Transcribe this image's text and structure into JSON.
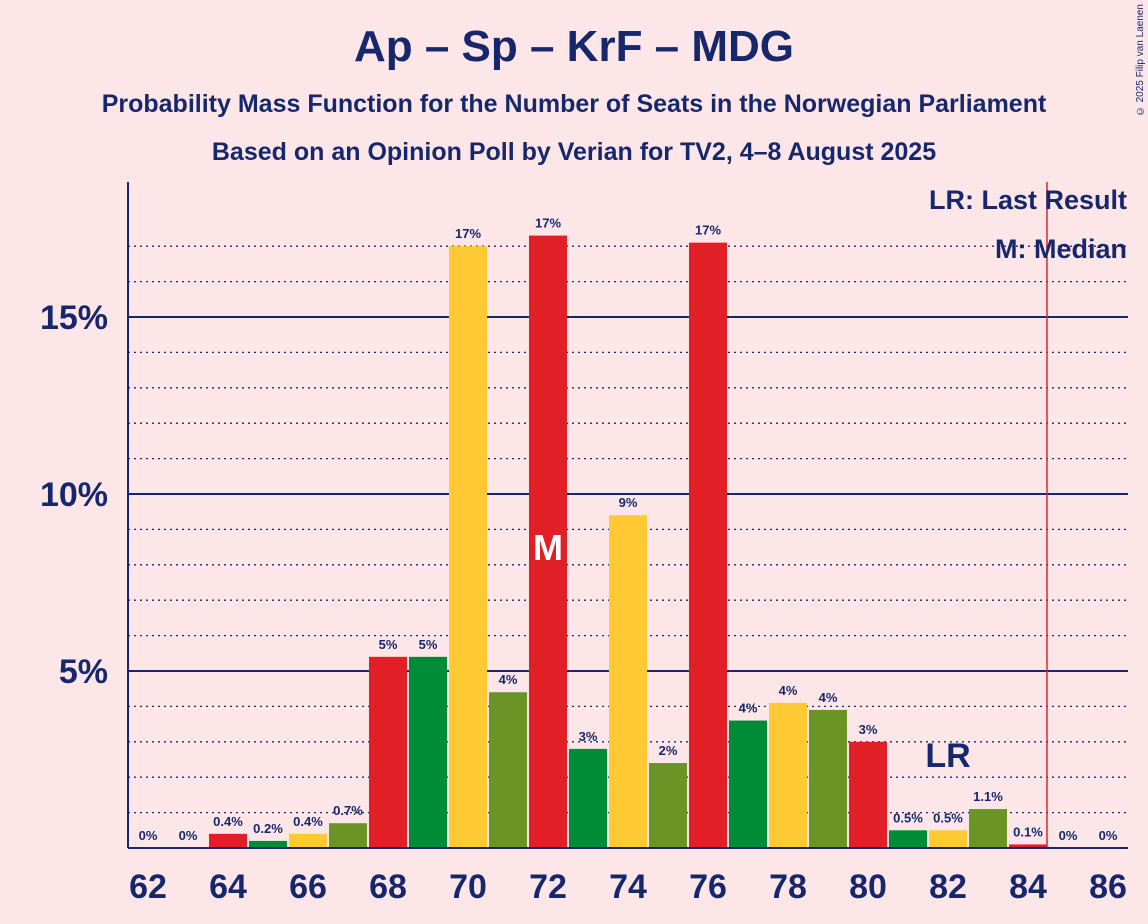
{
  "title": "Ap – Sp – KrF – MDG",
  "subtitle": "Probability Mass Function for the Number of Seats in the Norwegian Parliament",
  "subtitle2": "Based on an Opinion Poll by Verian for TV2, 4–8 August 2025",
  "copyright": "© 2025 Filip van Laenen",
  "legend": {
    "lr": "LR: Last Result",
    "m": "M: Median"
  },
  "colors": {
    "background": "#FDE6E8",
    "axis": "#16286B",
    "last_result_line": "#E0262B",
    "palette": [
      "#E01F26",
      "#008C36",
      "#FFC933",
      "#6B9427"
    ]
  },
  "chart_data": {
    "type": "bar",
    "x": [
      62,
      63,
      64,
      65,
      66,
      67,
      68,
      69,
      70,
      71,
      72,
      73,
      74,
      75,
      76,
      77,
      78,
      79,
      80,
      81,
      82,
      83,
      84,
      85,
      86
    ],
    "values": [
      0,
      0,
      0.4,
      0.2,
      0.4,
      0.7,
      5.4,
      5.4,
      17,
      4.4,
      17.3,
      2.8,
      9.4,
      2.4,
      17.1,
      3.6,
      4.1,
      3.9,
      3.0,
      0.5,
      0.5,
      1.1,
      0.1,
      0,
      0
    ],
    "data_labels": [
      "0%",
      "0%",
      "0.4%",
      "0.2%",
      "0.4%",
      "0.7%",
      "5%",
      "5%",
      "17%",
      "4%",
      "17%",
      "3%",
      "9%",
      "2%",
      "17%",
      "4%",
      "4%",
      "4%",
      "3%",
      "0.5%",
      "0.5%",
      "1.1%",
      "0.1%",
      "0%",
      "0%"
    ],
    "x_ticks": [
      "62",
      "64",
      "66",
      "68",
      "70",
      "72",
      "74",
      "76",
      "78",
      "80",
      "82",
      "84",
      "86"
    ],
    "y_ticks": [
      "5%",
      "10%",
      "15%"
    ],
    "y_tick_values": [
      5,
      10,
      15
    ],
    "ylim": [
      0,
      19
    ],
    "median": 72,
    "median_label": "M",
    "last_result": 82,
    "last_result_label": "LR",
    "threshold_x": 85,
    "grid": "dotted every 1%, solid at 5%"
  }
}
